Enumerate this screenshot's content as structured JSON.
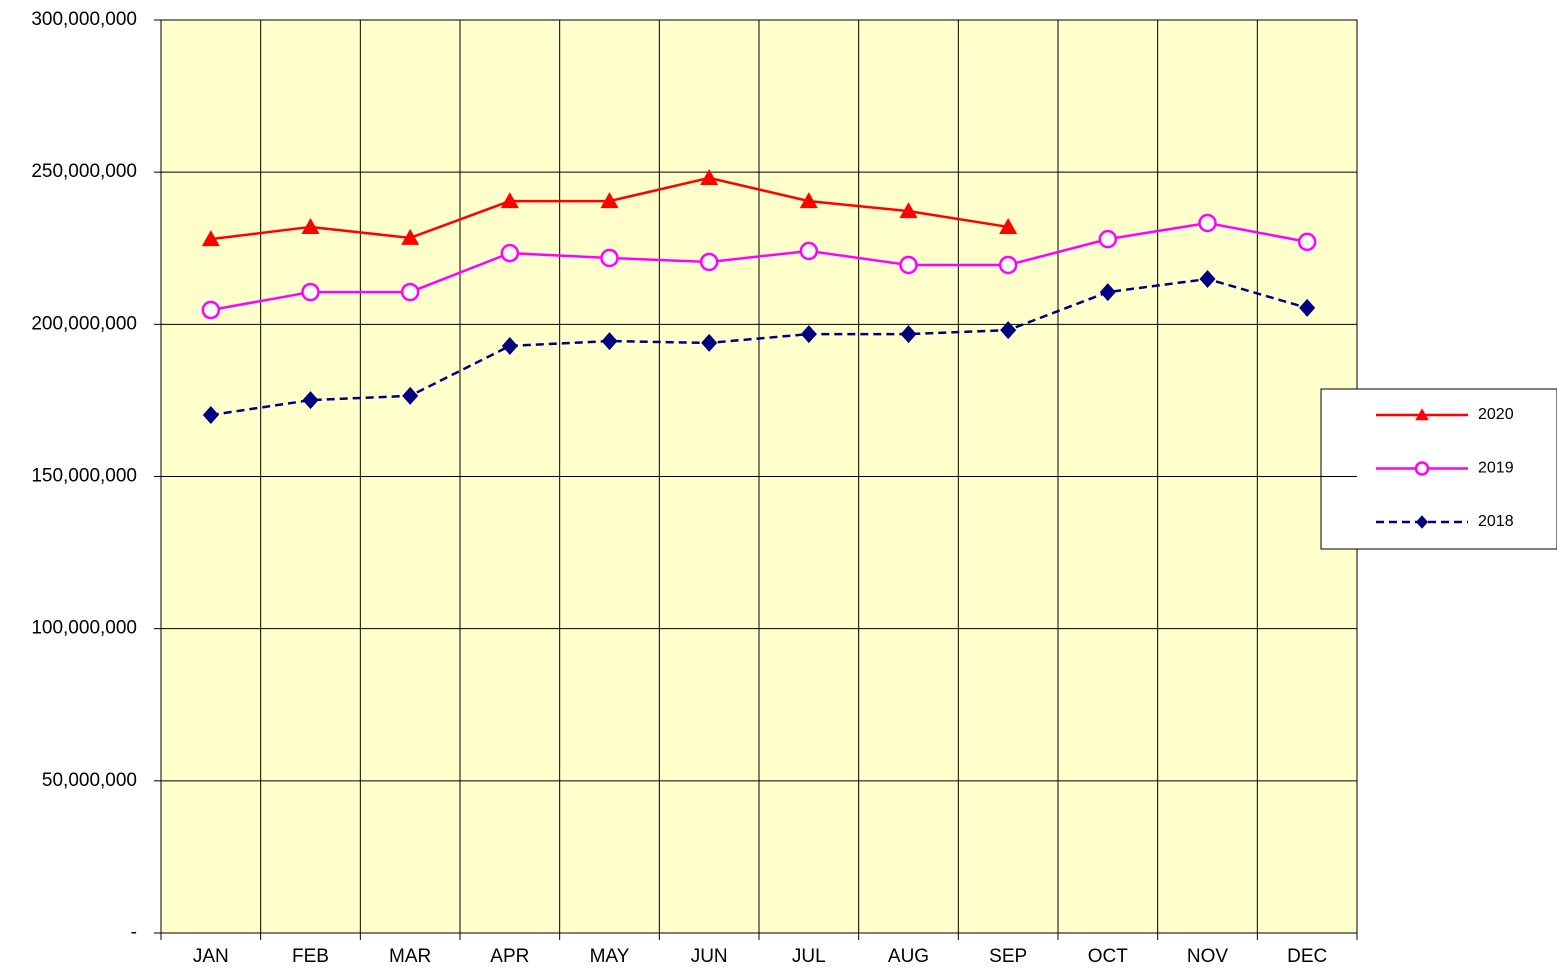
{
  "chart_data": {
    "type": "line",
    "categories": [
      "JAN",
      "FEB",
      "MAR",
      "APR",
      "MAY",
      "JUN",
      "JUL",
      "AUG",
      "SEP",
      "OCT",
      "NOV",
      "DEC"
    ],
    "series": [
      {
        "name": "2020",
        "color": "#ff0000",
        "marker": "triangle",
        "dashed": false,
        "values": [
          228000000,
          232000000,
          228400000,
          240500000,
          240500000,
          248100000,
          240500000,
          237200000,
          232000000,
          null,
          null,
          null
        ]
      },
      {
        "name": "2019",
        "color": "#ff00ff",
        "marker": "circle",
        "dashed": false,
        "values": [
          204700000,
          210600000,
          210600000,
          223400000,
          221800000,
          220500000,
          224100000,
          219500000,
          219500000,
          228000000,
          233300000,
          227100000
        ]
      },
      {
        "name": "2018",
        "color": "#000080",
        "marker": "diamond",
        "dashed": true,
        "values": [
          170200000,
          175100000,
          176500000,
          192900000,
          194500000,
          193900000,
          196800000,
          196800000,
          198100000,
          210600000,
          214900000,
          205400000
        ]
      }
    ],
    "ylim": [
      0,
      300000000
    ],
    "yticks": [
      {
        "value": 0,
        "label": "-"
      },
      {
        "value": 50000000,
        "label": "50,000,000"
      },
      {
        "value": 100000000,
        "label": "100,000,000"
      },
      {
        "value": 150000000,
        "label": "150,000,000"
      },
      {
        "value": 200000000,
        "label": "200,000,000"
      },
      {
        "value": 250000000,
        "label": "250,000,000"
      },
      {
        "value": 300000000,
        "label": "300,000,000"
      }
    ],
    "grid": true,
    "legend": "right",
    "background": "#ffffcc"
  }
}
